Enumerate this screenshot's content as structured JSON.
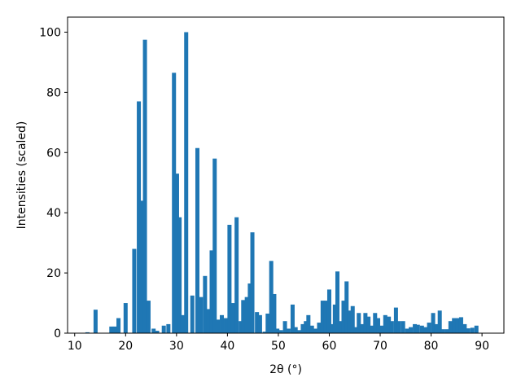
{
  "chart_data": {
    "type": "bar",
    "xlabel": "2θ (°)",
    "ylabel": "Intensities (scaled)",
    "x": [
      12.5,
      14.1,
      17.2,
      17.9,
      18.6,
      20,
      21.7,
      22.6,
      23.2,
      23.8,
      24.5,
      25.5,
      26.2,
      27.5,
      28.4,
      29.5,
      30.1,
      30.6,
      31.2,
      31.9,
      33.1,
      34.1,
      34.8,
      35.6,
      36.2,
      36.9,
      37.5,
      38.1,
      38.9,
      39.7,
      40.4,
      41.1,
      41.8,
      42.6,
      43.1,
      43.8,
      44.4,
      44.9,
      45.8,
      46.4,
      47.3,
      47.9,
      48.6,
      49.2,
      49.8,
      50.5,
      51.3,
      52,
      52.8,
      53.4,
      54.1,
      54.8,
      55.4,
      55.9,
      56.6,
      57.3,
      58,
      58.7,
      59.3,
      60,
      60.6,
      61.1,
      61.6,
      62.3,
      62.8,
      63.4,
      64,
      64.6,
      65.2,
      65.8,
      66.5,
      67.1,
      67.7,
      68.3,
      69,
      69.6,
      70.3,
      71,
      71.7,
      72.3,
      73.1,
      73.7,
      74.5,
      75.3,
      76,
      76.8,
      77.4,
      78.2,
      78.9,
      79.6,
      80.4,
      81,
      81.7,
      82.3,
      83.1,
      83.8,
      84.5,
      85.2,
      85.9,
      86.6,
      87.3,
      88.1,
      88.9
    ],
    "values": [
      0.3,
      7.8,
      2.2,
      2.2,
      5,
      10,
      28,
      77,
      44,
      97.5,
      10.8,
      1.5,
      0.8,
      2.5,
      3,
      86.5,
      53,
      38.5,
      6,
      100,
      12.5,
      61.5,
      12,
      19,
      8,
      27.5,
      58,
      4.5,
      6,
      5,
      36,
      10,
      38.5,
      4,
      11,
      12,
      16.5,
      33.5,
      7,
      6,
      0.5,
      6.5,
      24,
      13,
      1.5,
      1,
      4,
      1.5,
      9.5,
      2,
      1,
      3,
      4,
      6,
      2.5,
      1.5,
      3.5,
      10.8,
      10.8,
      14.5,
      3,
      9.5,
      20.5,
      4,
      10.8,
      17.2,
      7.5,
      9,
      2,
      6.7,
      3,
      6.7,
      5.5,
      2.5,
      6.7,
      5,
      2.5,
      6,
      5.5,
      4,
      8.5,
      4,
      4,
      1.5,
      2,
      3,
      2.8,
      2.5,
      2,
      3.5,
      6.7,
      3,
      7.5,
      1.3,
      1.3,
      4,
      5,
      5,
      5.3,
      3,
      1.6,
      1.8,
      2.5
    ],
    "color": "#1f77b4",
    "xlim": [
      8.6,
      94.3
    ],
    "ylim": [
      0,
      105
    ],
    "xticks": [
      10,
      20,
      30,
      40,
      50,
      60,
      70,
      80,
      90
    ],
    "yticks": [
      0,
      20,
      40,
      60,
      80,
      100
    ],
    "grid": false
  }
}
